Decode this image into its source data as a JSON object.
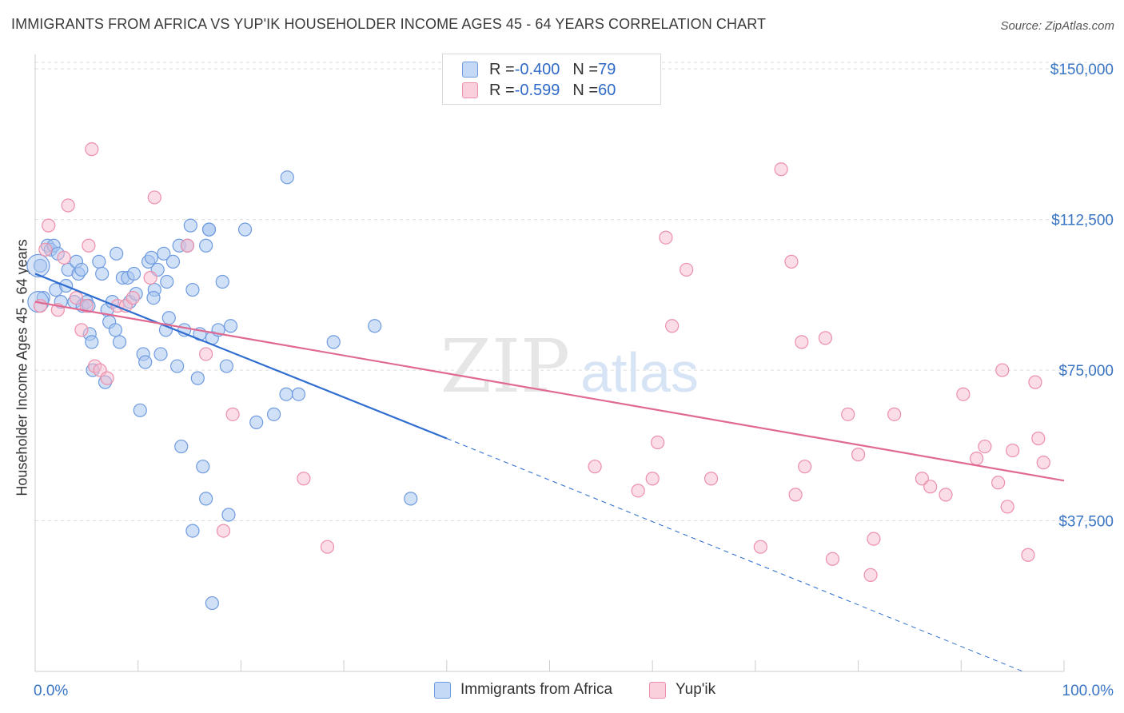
{
  "title": "IMMIGRANTS FROM AFRICA VS YUP'IK HOUSEHOLDER INCOME AGES 45 - 64 YEARS CORRELATION CHART",
  "source": "Source: ZipAtlas.com",
  "watermark": {
    "zip": "ZIP",
    "atlas": "atlas"
  },
  "colors": {
    "blue_fill": "#a9c6f0",
    "blue_stroke": "#6f9be0",
    "blue_line": "#2f6ed0",
    "pink_fill": "#f6bccd",
    "pink_stroke": "#ec8fab",
    "pink_line": "#e06a92",
    "axis_text": "#3a75c4"
  },
  "legend": {
    "rows": [
      {
        "r_label": "R = ",
        "r_value": "-0.400",
        "n_label": "N = ",
        "n_value": "79"
      },
      {
        "r_label": "R = ",
        "r_value": "-0.599",
        "n_label": "N = ",
        "n_value": "60"
      }
    ]
  },
  "bottom_legend": [
    "Immigrants from Africa",
    "Yup'ik"
  ],
  "chart_data": {
    "type": "scatter",
    "xlabel": "",
    "ylabel": "Householder Income Ages 45 - 64 years",
    "xlim": [
      0,
      100
    ],
    "ylim": [
      0,
      155000
    ],
    "x_tick_labels": [
      "0.0%",
      "100.0%"
    ],
    "y_ticks": [
      37500,
      75000,
      112500,
      150000
    ],
    "y_tick_labels": [
      "$37,500",
      "$75,000",
      "$112,500",
      "$150,000"
    ],
    "grid": true,
    "series": [
      {
        "name": "Immigrants from Africa",
        "points": [
          [
            0.5,
            101000
          ],
          [
            0.8,
            93000
          ],
          [
            1.2,
            106000
          ],
          [
            1.5,
            105000
          ],
          [
            1.8,
            106000
          ],
          [
            2.0,
            95000
          ],
          [
            2.2,
            104000
          ],
          [
            2.5,
            92000
          ],
          [
            3.0,
            96000
          ],
          [
            3.2,
            100000
          ],
          [
            3.8,
            92000
          ],
          [
            4.0,
            102000
          ],
          [
            4.2,
            99000
          ],
          [
            4.5,
            100000
          ],
          [
            4.6,
            91000
          ],
          [
            5.0,
            92000
          ],
          [
            5.2,
            91000
          ],
          [
            5.3,
            84000
          ],
          [
            5.5,
            82000
          ],
          [
            5.6,
            75000
          ],
          [
            6.2,
            102000
          ],
          [
            6.5,
            99000
          ],
          [
            6.8,
            72000
          ],
          [
            7.0,
            90000
          ],
          [
            7.2,
            87000
          ],
          [
            7.5,
            92000
          ],
          [
            7.8,
            85000
          ],
          [
            7.9,
            104000
          ],
          [
            8.2,
            82000
          ],
          [
            8.5,
            98000
          ],
          [
            9.0,
            98000
          ],
          [
            9.2,
            92000
          ],
          [
            9.6,
            99000
          ],
          [
            9.8,
            94000
          ],
          [
            10.2,
            65000
          ],
          [
            10.5,
            79000
          ],
          [
            10.7,
            77000
          ],
          [
            11.0,
            102000
          ],
          [
            11.3,
            103000
          ],
          [
            11.6,
            95000
          ],
          [
            11.9,
            100000
          ],
          [
            12.2,
            79000
          ],
          [
            12.5,
            104000
          ],
          [
            12.7,
            85000
          ],
          [
            12.8,
            97000
          ],
          [
            13.0,
            88000
          ],
          [
            13.4,
            102000
          ],
          [
            13.8,
            76000
          ],
          [
            14.0,
            106000
          ],
          [
            14.2,
            56000
          ],
          [
            14.5,
            85000
          ],
          [
            14.8,
            106000
          ],
          [
            15.1,
            111000
          ],
          [
            15.3,
            95000
          ],
          [
            15.8,
            73000
          ],
          [
            16.0,
            84000
          ],
          [
            16.3,
            51000
          ],
          [
            16.6,
            106000
          ],
          [
            16.9,
            110000
          ],
          [
            17.2,
            83000
          ],
          [
            17.8,
            85000
          ],
          [
            18.2,
            97000
          ],
          [
            18.6,
            76000
          ],
          [
            19.0,
            86000
          ],
          [
            18.8,
            39000
          ],
          [
            16.6,
            43000
          ],
          [
            17.2,
            17000
          ],
          [
            20.4,
            110000
          ],
          [
            21.5,
            62000
          ],
          [
            23.2,
            64000
          ],
          [
            24.4,
            69000
          ],
          [
            24.5,
            123000
          ],
          [
            25.6,
            69000
          ],
          [
            29.0,
            82000
          ],
          [
            33.0,
            86000
          ],
          [
            36.5,
            43000
          ],
          [
            15.3,
            35000
          ],
          [
            11.5,
            93000
          ],
          [
            16.9,
            110000
          ]
        ]
      },
      {
        "name": "Yup'ik",
        "points": [
          [
            0.5,
            91000
          ],
          [
            1.0,
            105000
          ],
          [
            1.3,
            111000
          ],
          [
            2.2,
            90000
          ],
          [
            2.8,
            103000
          ],
          [
            3.2,
            116000
          ],
          [
            4.0,
            93000
          ],
          [
            4.5,
            85000
          ],
          [
            5.0,
            91000
          ],
          [
            5.2,
            106000
          ],
          [
            5.5,
            130000
          ],
          [
            5.8,
            76000
          ],
          [
            6.3,
            75000
          ],
          [
            7.0,
            73000
          ],
          [
            8.0,
            91000
          ],
          [
            8.8,
            91000
          ],
          [
            9.5,
            93000
          ],
          [
            11.2,
            98000
          ],
          [
            11.6,
            118000
          ],
          [
            14.8,
            106000
          ],
          [
            16.6,
            79000
          ],
          [
            18.3,
            35000
          ],
          [
            19.2,
            64000
          ],
          [
            26.1,
            48000
          ],
          [
            28.4,
            31000
          ],
          [
            54.4,
            51000
          ],
          [
            58.6,
            45000
          ],
          [
            60.0,
            48000
          ],
          [
            60.5,
            57000
          ],
          [
            61.3,
            108000
          ],
          [
            61.9,
            86000
          ],
          [
            63.3,
            100000
          ],
          [
            65.7,
            48000
          ],
          [
            70.5,
            31000
          ],
          [
            72.5,
            125000
          ],
          [
            73.5,
            102000
          ],
          [
            73.9,
            44000
          ],
          [
            74.5,
            82000
          ],
          [
            74.8,
            51000
          ],
          [
            76.8,
            83000
          ],
          [
            77.5,
            28000
          ],
          [
            79.0,
            64000
          ],
          [
            80.0,
            54000
          ],
          [
            81.2,
            24000
          ],
          [
            81.5,
            33000
          ],
          [
            83.5,
            64000
          ],
          [
            86.2,
            48000
          ],
          [
            87.0,
            46000
          ],
          [
            88.5,
            44000
          ],
          [
            90.2,
            69000
          ],
          [
            91.5,
            53000
          ],
          [
            92.3,
            56000
          ],
          [
            93.6,
            47000
          ],
          [
            94.0,
            75000
          ],
          [
            94.5,
            41000
          ],
          [
            95.0,
            55000
          ],
          [
            96.5,
            29000
          ],
          [
            97.2,
            72000
          ],
          [
            97.5,
            58000
          ],
          [
            98.0,
            52000
          ]
        ]
      }
    ],
    "trendlines": [
      {
        "series": "Immigrants from Africa",
        "solid": [
          [
            0,
            99000
          ],
          [
            40,
            58000
          ]
        ],
        "dashed": [
          [
            40,
            58000
          ],
          [
            96,
            0
          ]
        ]
      },
      {
        "series": "Yup'ik",
        "solid": [
          [
            0,
            92000
          ],
          [
            100,
            47500
          ]
        ]
      }
    ]
  }
}
